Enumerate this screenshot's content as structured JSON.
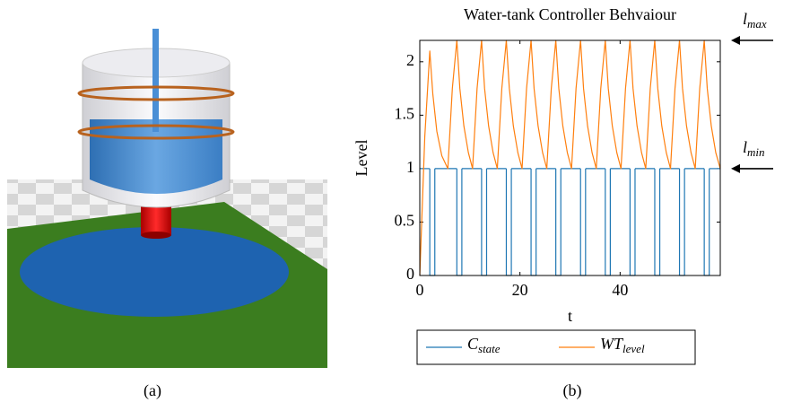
{
  "chart_data": {
    "type": "line",
    "title": "Water-tank Controller Behvaiour",
    "xlabel": "t",
    "ylabel": "Level",
    "xlim": [
      0,
      60
    ],
    "xticks": [
      0,
      20,
      40
    ],
    "ylim": [
      0,
      2.2
    ],
    "yticks": [
      0,
      0.5,
      1,
      1.5,
      2
    ],
    "series": [
      {
        "name": "C_state",
        "color": "#1f77b4",
        "step": true,
        "x": [
          0,
          2,
          3,
          7.4,
          8.4,
          12.34,
          13.34,
          17.28,
          18.28,
          22.22,
          23.22,
          27.16,
          28.16,
          32.1,
          33.1,
          37.04,
          38.04,
          41.98,
          42.98,
          46.92,
          47.92,
          51.86,
          52.86,
          56.8,
          57.8
        ],
        "values": [
          1,
          0,
          1,
          0,
          1,
          0,
          1,
          0,
          1,
          0,
          1,
          0,
          1,
          0,
          1,
          0,
          1,
          0,
          1,
          0,
          1,
          0,
          1,
          0,
          1
        ]
      },
      {
        "name": "WT_level",
        "color": "#ff7f0e",
        "x": [
          0,
          1,
          2,
          2.6,
          3.4,
          4.4,
          5.6,
          6.5,
          7.4,
          8.0,
          8.8,
          9.7,
          10.54,
          11.44,
          12.34,
          12.94,
          13.74,
          14.64,
          15.48,
          16.38,
          17.28,
          17.88,
          18.68,
          19.58,
          20.42,
          21.32,
          22.22,
          22.82,
          23.62,
          24.52,
          25.36,
          26.26,
          27.16,
          27.76,
          28.56,
          29.46,
          30.3,
          31.2,
          32.1,
          32.7,
          33.5,
          34.4,
          35.24,
          36.14,
          37.04,
          37.64,
          38.44,
          39.34,
          40.18,
          41.08,
          41.98,
          42.58,
          43.38,
          44.28,
          45.12,
          46.02,
          46.92,
          47.52,
          48.32,
          49.22,
          50.06,
          50.96,
          51.86,
          52.46,
          53.26,
          54.16,
          55.0,
          55.9,
          56.8,
          57.4,
          58.2,
          59.1,
          60
        ],
        "values": [
          0,
          1.3,
          2.1,
          1.7,
          1.35,
          1.12,
          1.0,
          1.75,
          2.2,
          1.75,
          1.4,
          1.15,
          1.0,
          1.75,
          2.2,
          1.75,
          1.4,
          1.15,
          1.0,
          1.75,
          2.2,
          1.75,
          1.4,
          1.15,
          1.0,
          1.75,
          2.2,
          1.75,
          1.4,
          1.15,
          1.0,
          1.75,
          2.2,
          1.75,
          1.4,
          1.15,
          1.0,
          1.75,
          2.2,
          1.75,
          1.4,
          1.15,
          1.0,
          1.75,
          2.2,
          1.75,
          1.4,
          1.15,
          1.0,
          1.75,
          2.2,
          1.75,
          1.4,
          1.15,
          1.0,
          1.75,
          2.2,
          1.75,
          1.4,
          1.15,
          1.0,
          1.75,
          2.2,
          1.75,
          1.4,
          1.15,
          1.0,
          1.75,
          2.2,
          1.75,
          1.4,
          1.15,
          1.0
        ]
      }
    ],
    "annotations": [
      {
        "text": "l_max",
        "y": 2.2
      },
      {
        "text": "l_min",
        "y": 1
      }
    ],
    "captions": [
      "(a)",
      "(b)"
    ]
  }
}
